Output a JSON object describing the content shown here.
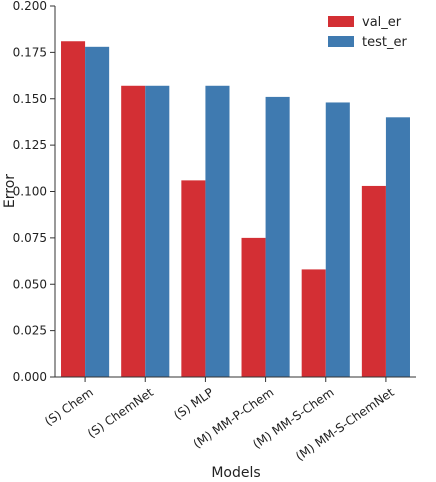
{
  "chart_data": {
    "type": "bar",
    "categories": [
      "(S) Chem",
      "(S) ChemNet",
      "(S) MLP",
      "(M) MM-P-Chem",
      "(M) MM-S-Chem",
      "(M) MM-S-ChemNet"
    ],
    "series": [
      {
        "name": "val_er",
        "color": "#d32f34",
        "values": [
          0.181,
          0.157,
          0.106,
          0.075,
          0.058,
          0.103
        ]
      },
      {
        "name": "test_er",
        "color": "#3f7ab0",
        "values": [
          0.178,
          0.157,
          0.157,
          0.151,
          0.148,
          0.14
        ]
      }
    ],
    "title": "",
    "xlabel": "Models",
    "ylabel": "Error",
    "ylim": [
      0,
      0.2
    ],
    "yticks": [
      "0.000",
      "0.025",
      "0.050",
      "0.075",
      "0.100",
      "0.125",
      "0.150",
      "0.175",
      "0.200"
    ],
    "grid": false,
    "legend_position": "top-right"
  }
}
